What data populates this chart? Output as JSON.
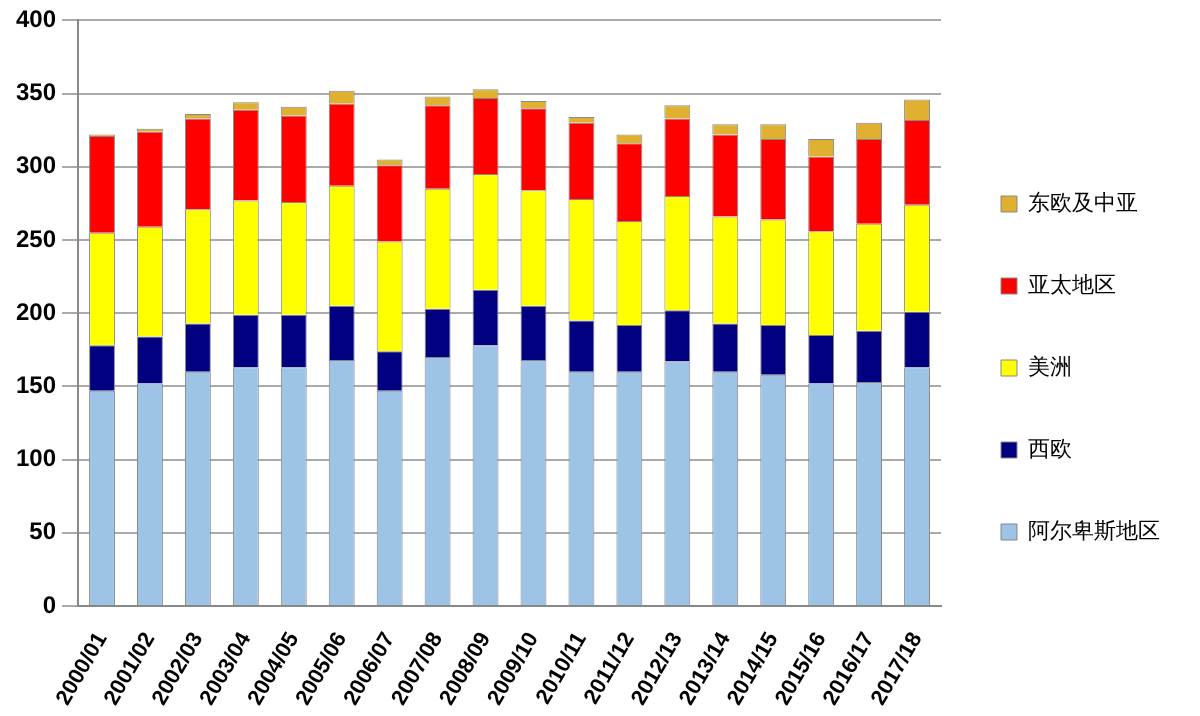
{
  "chart_data": {
    "type": "bar",
    "stacked": true,
    "categories": [
      "2000/01",
      "2001/02",
      "2002/03",
      "2003/04",
      "2004/05",
      "2005/06",
      "2006/07",
      "2007/08",
      "2008/09",
      "2009/10",
      "2010/11",
      "2011/12",
      "2012/13",
      "2013/14",
      "2014/15",
      "2015/16",
      "2016/17",
      "2017/18"
    ],
    "series": [
      {
        "name": "阿尔卑斯地区",
        "color": "#9dc3e6",
        "values": [
          147,
          152,
          160,
          163,
          163,
          168,
          147,
          170,
          178,
          168,
          160,
          160,
          167,
          160,
          158,
          152,
          153,
          163
        ]
      },
      {
        "name": "西欧",
        "color": "#000080",
        "values": [
          31,
          32,
          33,
          36,
          36,
          37,
          27,
          33,
          38,
          37,
          35,
          32,
          35,
          33,
          34,
          33,
          35,
          38
        ]
      },
      {
        "name": "美洲",
        "color": "#ffff00",
        "values": [
          77,
          75,
          78,
          78,
          77,
          82,
          75,
          82,
          79,
          79,
          83,
          71,
          78,
          73,
          72,
          71,
          73,
          73
        ]
      },
      {
        "name": "亚太地区",
        "color": "#ff0000",
        "values": [
          66,
          65,
          62,
          62,
          59,
          56,
          52,
          57,
          52,
          56,
          52,
          53,
          53,
          56,
          55,
          51,
          58,
          58
        ]
      },
      {
        "name": "东欧及中亚",
        "color": "#e0b030",
        "values": [
          1,
          2,
          3,
          5,
          6,
          9,
          4,
          6,
          6,
          5,
          4,
          6,
          9,
          7,
          10,
          12,
          11,
          14
        ]
      }
    ],
    "ylim": [
      0,
      400
    ],
    "yticks": [
      0,
      50,
      100,
      150,
      200,
      250,
      300,
      350,
      400
    ],
    "grid": "y",
    "legend": "right"
  }
}
